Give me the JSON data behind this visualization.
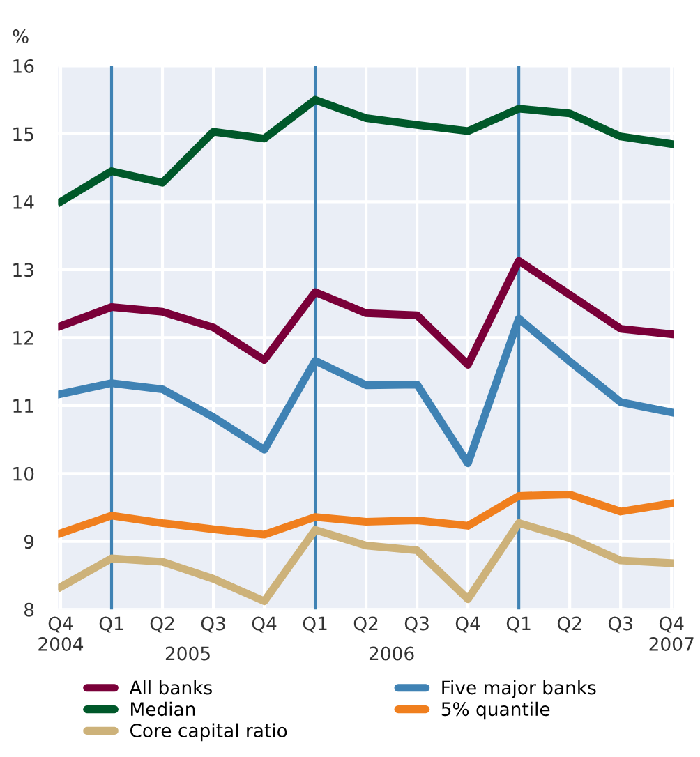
{
  "chart_data": {
    "type": "line",
    "ylabel": "%",
    "categories": [
      "Q4\n2004",
      "Q1",
      "Q2",
      "Q3",
      "Q4",
      "Q1",
      "Q2",
      "Q3",
      "Q4",
      "Q1",
      "Q2",
      "Q3",
      "Q4\n2007"
    ],
    "annotations": [
      "2005",
      "2006"
    ],
    "series": [
      {
        "name": "All banks",
        "color": "#7a0039",
        "values": [
          12.17,
          12.45,
          12.38,
          12.15,
          11.67,
          12.67,
          12.36,
          12.33,
          11.6,
          13.13,
          12.63,
          12.13,
          12.05
        ]
      },
      {
        "name": "Median",
        "color": "#00582a",
        "values": [
          14.0,
          14.45,
          14.28,
          15.03,
          14.93,
          15.5,
          15.23,
          15.13,
          15.04,
          15.37,
          15.3,
          14.96,
          14.85
        ]
      },
      {
        "name": "Core capital ratio",
        "color": "#cdb27a",
        "values": [
          8.33,
          8.75,
          8.7,
          8.45,
          8.12,
          9.17,
          8.94,
          8.87,
          8.15,
          9.27,
          9.05,
          8.72,
          8.68
        ]
      },
      {
        "name": "Five major banks",
        "color": "#3f82b4",
        "values": [
          11.17,
          11.33,
          11.24,
          10.83,
          10.35,
          11.66,
          11.3,
          11.31,
          10.15,
          12.28,
          11.65,
          11.05,
          10.9
        ]
      },
      {
        "name": "5% quantile",
        "color": "#f07f1e",
        "values": [
          9.12,
          9.38,
          9.27,
          9.18,
          9.1,
          9.36,
          9.29,
          9.31,
          9.23,
          9.67,
          9.69,
          9.44,
          9.56
        ]
      }
    ],
    "ylim": [
      8,
      16
    ],
    "yticks": [
      8,
      9,
      10,
      11,
      12,
      13,
      14,
      15,
      16
    ],
    "grid": true,
    "legend": "bottom",
    "line_style": "solid",
    "marker": "none"
  }
}
